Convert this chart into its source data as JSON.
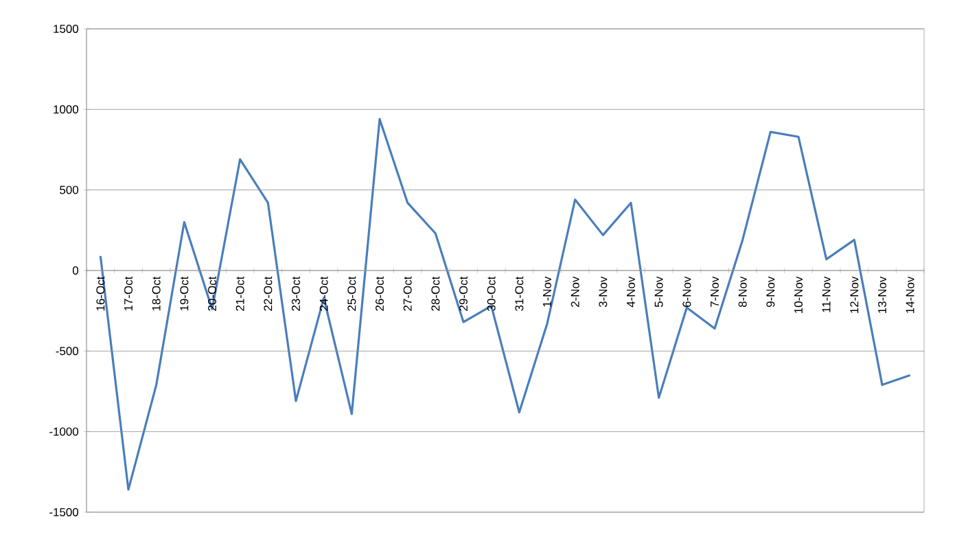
{
  "chart_data": {
    "type": "line",
    "categories": [
      "16-Oct",
      "17-Oct",
      "18-Oct",
      "19-Oct",
      "20-Oct",
      "21-Oct",
      "22-Oct",
      "23-Oct",
      "24-Oct",
      "25-Oct",
      "26-Oct",
      "27-Oct",
      "28-Oct",
      "29-Oct",
      "30-Oct",
      "31-Oct",
      "1-Nov",
      "2-Nov",
      "3-Nov",
      "4-Nov",
      "5-Nov",
      "6-Nov",
      "7-Nov",
      "8-Nov",
      "9-Nov",
      "10-Nov",
      "11-Nov",
      "12-Nov",
      "13-Nov",
      "14-Nov"
    ],
    "series": [
      {
        "color": "#4a7ebb",
        "values": [
          90,
          -1360,
          -710,
          300,
          -240,
          690,
          420,
          -810,
          -170,
          -890,
          940,
          420,
          230,
          -320,
          -220,
          -880,
          -330,
          440,
          220,
          420,
          -790,
          -230,
          -360,
          190,
          860,
          830,
          70,
          190,
          -710,
          -650
        ]
      }
    ],
    "ylim": [
      -1500,
      1500
    ],
    "yticks": [
      -1500,
      -1000,
      -500,
      0,
      500,
      1000,
      1500
    ],
    "grid": "y",
    "line_style": "solid"
  }
}
